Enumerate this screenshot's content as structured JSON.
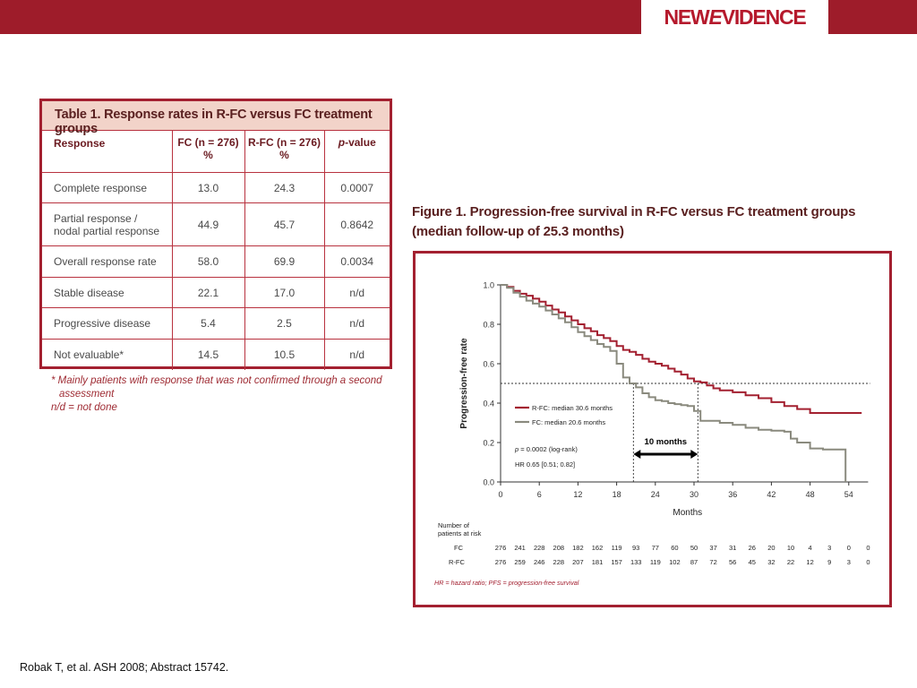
{
  "header": {
    "logo_new": "NEW",
    "logo_e": "E",
    "logo_rest": "VIDENCE"
  },
  "table": {
    "title": "Table 1. Response rates in R-FC versus FC treatment groups",
    "headers": {
      "response": "Response",
      "fc_line1": "FC (n = 276)",
      "fc_line2": "%",
      "rfc_line1": "R-FC (n = 276)",
      "rfc_line2": "%",
      "p_italic": "p",
      "p_rest": "-value"
    },
    "rows": [
      {
        "label": "Complete response",
        "label2": "",
        "fc": "13.0",
        "rfc": "24.3",
        "p": "0.0007"
      },
      {
        "label": "Partial response /",
        "label2": "nodal partial response",
        "fc": "44.9",
        "rfc": "45.7",
        "p": "0.8642"
      },
      {
        "label": "Overall response rate",
        "label2": "",
        "fc": "58.0",
        "rfc": "69.9",
        "p": "0.0034"
      },
      {
        "label": "Stable disease",
        "label2": "",
        "fc": "22.1",
        "rfc": "17.0",
        "p": "n/d"
      },
      {
        "label": "Progressive disease",
        "label2": "",
        "fc": "5.4",
        "rfc": "2.5",
        "p": "n/d"
      },
      {
        "label": "Not evaluable*",
        "label2": "",
        "fc": "14.5",
        "rfc": "10.5",
        "p": "n/d"
      }
    ],
    "footnote_line1": "* Mainly patients with response that was not confirmed through a second",
    "footnote_line2": "assessment",
    "footnote_line3": "n/d = not done"
  },
  "figure": {
    "title_line1": "Figure 1. Progression-free survival in R-FC versus FC treatment groups",
    "title_line2": "(median follow-up of 25.3 months)"
  },
  "chart_data": {
    "type": "line",
    "title": "Figure 1. Progression-free survival in R-FC versus FC treatment groups (median follow-up of 25.3 months)",
    "xlabel": "Months",
    "ylabel": "Progression-free rate",
    "xlim": [
      0,
      57
    ],
    "ylim": [
      0,
      1.0
    ],
    "x_ticks": [
      0,
      6,
      12,
      18,
      24,
      30,
      36,
      42,
      48,
      54
    ],
    "y_ticks": [
      "0.0",
      "0.2",
      "0.4",
      "0.6",
      "0.8",
      "1.0"
    ],
    "legend_placement": "center",
    "series": [
      {
        "name": "R-FC: median 30.6 months",
        "color": "#a32030",
        "points": [
          [
            0,
            1.0
          ],
          [
            1,
            0.99
          ],
          [
            2,
            0.97
          ],
          [
            3,
            0.955
          ],
          [
            4,
            0.945
          ],
          [
            5,
            0.93
          ],
          [
            6,
            0.915
          ],
          [
            7,
            0.895
          ],
          [
            8,
            0.875
          ],
          [
            9,
            0.86
          ],
          [
            10,
            0.84
          ],
          [
            11,
            0.82
          ],
          [
            12,
            0.8
          ],
          [
            13,
            0.78
          ],
          [
            14,
            0.765
          ],
          [
            15,
            0.745
          ],
          [
            16,
            0.73
          ],
          [
            17,
            0.715
          ],
          [
            18,
            0.69
          ],
          [
            19,
            0.67
          ],
          [
            20,
            0.66
          ],
          [
            21,
            0.645
          ],
          [
            22,
            0.625
          ],
          [
            23,
            0.61
          ],
          [
            24,
            0.6
          ],
          [
            25,
            0.59
          ],
          [
            26,
            0.575
          ],
          [
            27,
            0.56
          ],
          [
            28,
            0.545
          ],
          [
            29,
            0.525
          ],
          [
            30,
            0.51
          ],
          [
            31,
            0.505
          ],
          [
            32,
            0.49
          ],
          [
            33,
            0.475
          ],
          [
            34,
            0.465
          ],
          [
            36,
            0.455
          ],
          [
            38,
            0.44
          ],
          [
            40,
            0.425
          ],
          [
            42,
            0.405
          ],
          [
            44,
            0.385
          ],
          [
            46,
            0.37
          ],
          [
            48,
            0.35
          ],
          [
            50,
            0.35
          ],
          [
            52,
            0.35
          ],
          [
            54,
            0.35
          ],
          [
            56,
            0.35
          ]
        ]
      },
      {
        "name": "FC: median 20.6 months",
        "color": "#8a8a7e",
        "points": [
          [
            0,
            1.0
          ],
          [
            1,
            0.985
          ],
          [
            2,
            0.96
          ],
          [
            3,
            0.94
          ],
          [
            4,
            0.92
          ],
          [
            5,
            0.905
          ],
          [
            6,
            0.89
          ],
          [
            7,
            0.87
          ],
          [
            8,
            0.85
          ],
          [
            9,
            0.83
          ],
          [
            10,
            0.81
          ],
          [
            11,
            0.785
          ],
          [
            12,
            0.76
          ],
          [
            13,
            0.74
          ],
          [
            14,
            0.72
          ],
          [
            15,
            0.7
          ],
          [
            16,
            0.685
          ],
          [
            17,
            0.665
          ],
          [
            18,
            0.6
          ],
          [
            19,
            0.53
          ],
          [
            20,
            0.5
          ],
          [
            21,
            0.48
          ],
          [
            22,
            0.45
          ],
          [
            23,
            0.43
          ],
          [
            24,
            0.415
          ],
          [
            25,
            0.41
          ],
          [
            26,
            0.4
          ],
          [
            27,
            0.395
          ],
          [
            28,
            0.39
          ],
          [
            29,
            0.385
          ],
          [
            30,
            0.36
          ],
          [
            31,
            0.31
          ],
          [
            32,
            0.31
          ],
          [
            34,
            0.3
          ],
          [
            36,
            0.29
          ],
          [
            38,
            0.275
          ],
          [
            40,
            0.265
          ],
          [
            42,
            0.26
          ],
          [
            44,
            0.255
          ],
          [
            45,
            0.22
          ],
          [
            46,
            0.2
          ],
          [
            48,
            0.17
          ],
          [
            50,
            0.165
          ],
          [
            52,
            0.165
          ],
          [
            53,
            0.165
          ],
          [
            53.5,
            0.0
          ]
        ]
      }
    ],
    "reference_line_y": 0.5,
    "median_markers": [
      20.6,
      30.6
    ],
    "annotations": {
      "interval_label": "10 months",
      "p_italic": "p",
      "p_text": " = 0.0002 (log-rank)",
      "hr_text": "HR 0.65 [0.51; 0.82]"
    },
    "at_risk": {
      "title_line1": "Number of",
      "title_line2": "patients at risk",
      "fc_label": "FC",
      "rfc_label": "R-FC",
      "fc": [
        "276",
        "241",
        "228",
        "208",
        "182",
        "162",
        "119",
        "93",
        "77",
        "60",
        "50",
        "37",
        "31",
        "26",
        "20",
        "10",
        "4",
        "3",
        "0",
        "0"
      ],
      "rfc": [
        "276",
        "259",
        "246",
        "228",
        "207",
        "181",
        "157",
        "133",
        "119",
        "102",
        "87",
        "72",
        "56",
        "45",
        "32",
        "22",
        "12",
        "9",
        "3",
        "0"
      ]
    },
    "footnote": "HR = hazard ratio; PFS = progression-free survival"
  },
  "citation": "Robak T, et al. ASH 2008; Abstract 15742."
}
